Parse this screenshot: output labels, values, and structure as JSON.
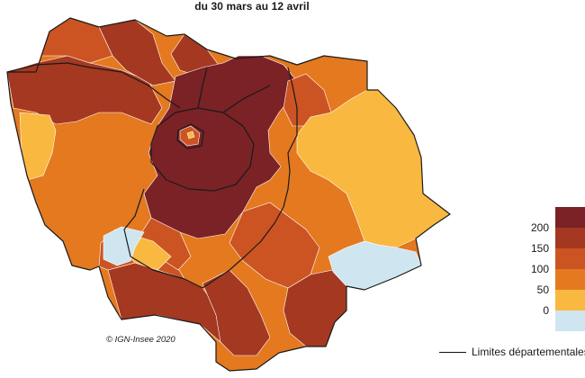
{
  "title": "du 30 mars au 12 avril",
  "credit": "© IGN-Insee 2020",
  "legend": {
    "classes": [
      {
        "label": "",
        "color": "#7a2226"
      },
      {
        "label": "200",
        "color": "#a53821"
      },
      {
        "label": "150",
        "color": "#cc5423"
      },
      {
        "label": "100",
        "color": "#e4791f"
      },
      {
        "label": "50",
        "color": "#f9b840"
      },
      {
        "label": "0",
        "color": "#cfe6f1"
      }
    ]
  },
  "boundary_legend": {
    "label": "Limites départementales"
  },
  "map_colors": {
    "darkest": "#7a2226",
    "dark": "#a53821",
    "mid": "#cc5423",
    "orange": "#e4791f",
    "yellow": "#f9b840",
    "light": "#cfe6f1",
    "boundary": "#1a1a1a"
  }
}
